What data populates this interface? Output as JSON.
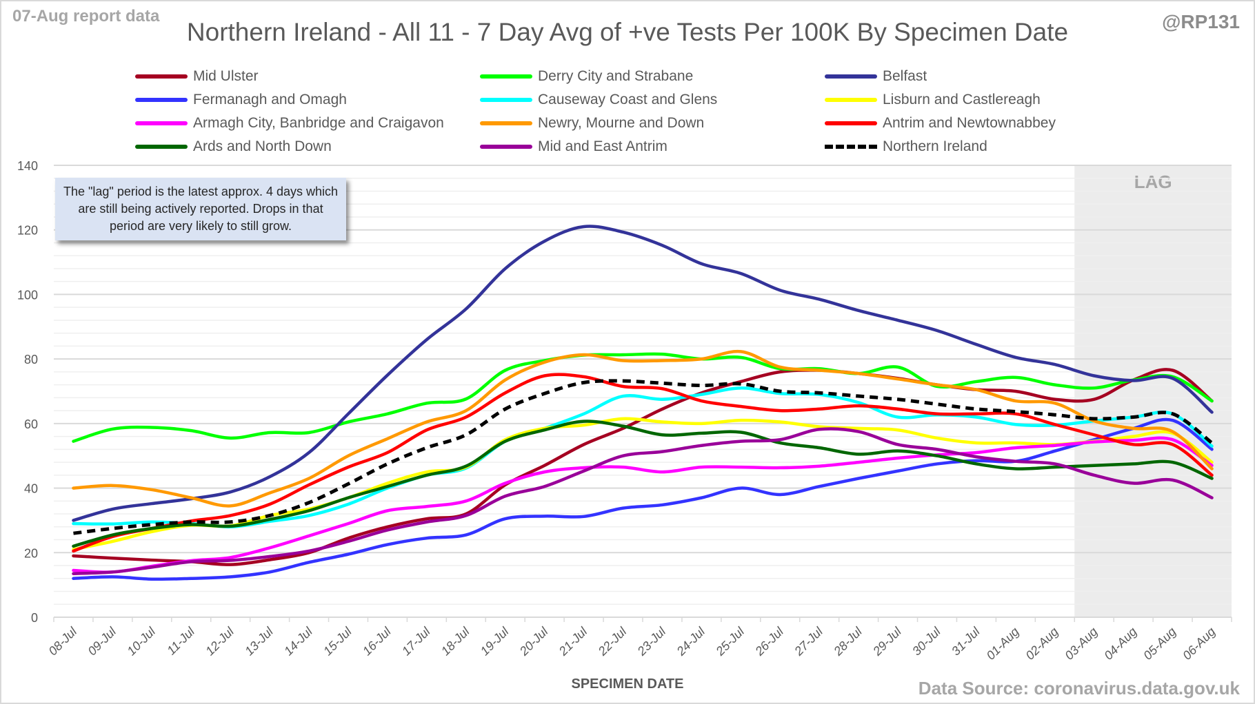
{
  "header": {
    "report_date": "07-Aug report data",
    "handle": "@RP131",
    "title": "Northern Ireland - All 11 - 7 Day Avg of +ve Tests Per 100K By Specimen Date"
  },
  "note": "The \"lag\" period is the latest approx. 4 days which are still being actively reported.  Drops in that period are very likely to still grow.",
  "footer": {
    "source": "Data Source: coronavirus.data.gov.uk"
  },
  "chart_data": {
    "type": "line",
    "title": "Northern Ireland - All 11 - 7 Day Avg of +ve Tests Per 100K By Specimen Date",
    "xlabel": "SPECIMEN DATE",
    "ylabel": "",
    "ylim": [
      0,
      140
    ],
    "yticks": [
      0,
      20,
      40,
      60,
      80,
      100,
      120,
      140
    ],
    "grid": "horizontal major and minor",
    "legend_position": "top",
    "lag_region": {
      "label": "LAG",
      "from": "03-Aug",
      "to": "06-Aug"
    },
    "x": [
      "08-Jul",
      "09-Jul",
      "10-Jul",
      "11-Jul",
      "12-Jul",
      "13-Jul",
      "14-Jul",
      "15-Jul",
      "16-Jul",
      "17-Jul",
      "18-Jul",
      "19-Jul",
      "20-Jul",
      "21-Jul",
      "22-Jul",
      "23-Jul",
      "24-Jul",
      "25-Jul",
      "26-Jul",
      "27-Jul",
      "28-Jul",
      "29-Jul",
      "30-Jul",
      "31-Jul",
      "01-Aug",
      "02-Aug",
      "03-Aug",
      "04-Aug",
      "05-Aug",
      "06-Aug"
    ],
    "series": [
      {
        "name": "Mid Ulster",
        "color": "#a50021",
        "dashed": false,
        "values": [
          19,
          18.3,
          17.7,
          17.2,
          16.3,
          17.8,
          20,
          24.5,
          28,
          30.5,
          32,
          41,
          47,
          53.5,
          58.5,
          64.5,
          69.5,
          73,
          76,
          76.5,
          75.5,
          74,
          72,
          70.5,
          70,
          67.5,
          67.5,
          73.5,
          76.5,
          67
        ]
      },
      {
        "name": "Derry City and Strabane",
        "color": "#00ff00",
        "dashed": false,
        "values": [
          54.5,
          58.3,
          58.8,
          57.8,
          55.5,
          57.2,
          57.2,
          60.5,
          63,
          66.3,
          67.6,
          76.5,
          79.5,
          81.2,
          81.3,
          81.5,
          80,
          80.5,
          77,
          77,
          75.5,
          77.5,
          71.5,
          73,
          74.3,
          72,
          71,
          73.5,
          74.5,
          67
        ]
      },
      {
        "name": "Belfast",
        "color": "#333399",
        "dashed": false,
        "values": [
          30,
          33.5,
          35.2,
          36.7,
          38.8,
          43.5,
          51,
          63,
          75,
          86,
          95.5,
          108,
          116.5,
          121,
          119.3,
          115.2,
          109.5,
          106.5,
          101.3,
          98.5,
          95,
          92,
          88.8,
          84.5,
          80.5,
          78.3,
          74.8,
          73.3,
          74,
          63.5
        ]
      },
      {
        "name": "Fermanagh and Omagh",
        "color": "#3333ff",
        "dashed": false,
        "values": [
          12,
          12.5,
          11.8,
          12,
          12.5,
          14,
          17,
          19.5,
          22.5,
          24.5,
          25.5,
          30.5,
          31.3,
          31.2,
          33.8,
          34.8,
          37,
          40,
          38,
          40.5,
          43,
          45.3,
          47.5,
          48.5,
          48.3,
          51.5,
          55,
          58.5,
          61,
          52
        ]
      },
      {
        "name": "Causeway Coast and Glens",
        "color": "#00ffff",
        "dashed": false,
        "values": [
          29,
          28.9,
          29.5,
          29,
          28,
          29.7,
          31.5,
          35,
          40,
          44,
          46.2,
          54.5,
          58.5,
          63,
          68.5,
          67.5,
          69,
          71,
          69.3,
          69,
          66.5,
          62,
          62.7,
          62,
          59.7,
          59.5,
          60.8,
          62,
          63,
          53
        ]
      },
      {
        "name": "Lisburn and Castlereagh",
        "color": "#ffff00",
        "dashed": false,
        "values": [
          21,
          23.5,
          26.5,
          28.5,
          28.3,
          31.5,
          33.5,
          37,
          41.5,
          45,
          46.5,
          55,
          58.5,
          59.5,
          61.5,
          60.5,
          60,
          61,
          60.5,
          59,
          58.5,
          58,
          55.5,
          54,
          54,
          53.5,
          54.5,
          56,
          57,
          48
        ]
      },
      {
        "name": "Armagh City, Banbridge and Craigavon",
        "color": "#ff00ff",
        "dashed": false,
        "values": [
          14.5,
          14,
          15.8,
          17.5,
          18.5,
          21.5,
          25.2,
          29,
          33,
          34.3,
          36,
          41.5,
          45,
          46.3,
          46.5,
          45,
          46.5,
          46.5,
          46.3,
          46.8,
          48,
          49.3,
          50.3,
          51,
          52.5,
          53.2,
          54.3,
          54.8,
          55,
          47
        ]
      },
      {
        "name": "Newry, Mourne and Down",
        "color": "#ff9900",
        "dashed": false,
        "values": [
          40,
          40.8,
          39.5,
          37,
          34.5,
          38.5,
          43,
          50,
          55.3,
          60.5,
          64,
          73.5,
          79,
          81.3,
          79.5,
          79.5,
          80,
          82.3,
          77.5,
          76.5,
          75.5,
          73.8,
          72,
          70.5,
          67,
          66.3,
          60.8,
          58.5,
          57.5,
          46
        ]
      },
      {
        "name": "Antrim and Newtownabbey",
        "color": "#ff0000",
        "dashed": false,
        "values": [
          20.5,
          25,
          27.5,
          29.8,
          31.5,
          35,
          41,
          46.5,
          51,
          58,
          62,
          69.5,
          74.8,
          74.5,
          71.5,
          70.8,
          67,
          65.3,
          64,
          64.5,
          65.5,
          64.5,
          63,
          63,
          63,
          59.7,
          56.5,
          53.5,
          53.5,
          44
        ]
      },
      {
        "name": "Ards and North Down",
        "color": "#006600",
        "dashed": false,
        "values": [
          22,
          25.5,
          27.5,
          28.7,
          28.2,
          30.3,
          33,
          37,
          40.5,
          44,
          46.8,
          54.5,
          58,
          60.7,
          59.2,
          56.5,
          57,
          57.3,
          54,
          52.5,
          50.5,
          51.5,
          50,
          47.5,
          46,
          46.5,
          47,
          47.5,
          48,
          43
        ]
      },
      {
        "name": "Mid and East Antrim",
        "color": "#990099",
        "dashed": false,
        "values": [
          13.5,
          14,
          15.5,
          17.2,
          17.6,
          18.8,
          20.5,
          23.5,
          27,
          29.5,
          31.5,
          37.5,
          40.5,
          45.3,
          50,
          51.3,
          53.2,
          54.5,
          55,
          58.2,
          57.5,
          53.5,
          52,
          49.7,
          48.3,
          47.5,
          44,
          41.5,
          42.5,
          37
        ]
      },
      {
        "name": "Northern Ireland",
        "color": "#000000",
        "dashed": true,
        "values": [
          26,
          27.5,
          28.7,
          29.5,
          29.5,
          31.5,
          35.5,
          41.3,
          47.5,
          52.5,
          56.5,
          64.5,
          69.3,
          72.7,
          73.2,
          72.5,
          71.8,
          72.3,
          70,
          69.5,
          68.5,
          67.5,
          66,
          64.5,
          63.7,
          62.7,
          61.5,
          62,
          63,
          54
        ]
      }
    ]
  }
}
